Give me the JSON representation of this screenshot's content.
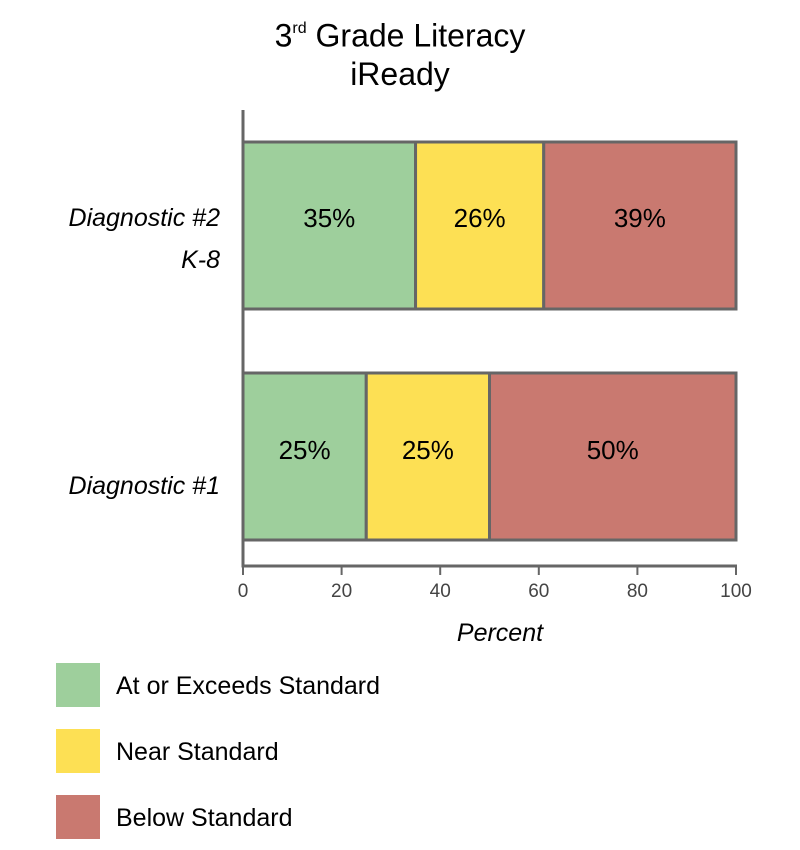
{
  "chart_data": {
    "type": "bar",
    "orientation": "horizontal",
    "stacked": true,
    "title": {
      "pre": "3",
      "sup": "rd",
      "post": " Grade Literacy",
      "line2": "iReady"
    },
    "categories": [
      [
        "Diagnostic #2",
        "K-8"
      ],
      [
        "Diagnostic #1"
      ]
    ],
    "series": [
      {
        "name": "At or Exceeds Standard",
        "color": "#9ecf9c",
        "values": [
          35,
          25
        ],
        "labels": [
          "35%",
          "25%"
        ]
      },
      {
        "name": "Near Standard",
        "color": "#fde054",
        "values": [
          26,
          25
        ],
        "labels": [
          "26%",
          "25%"
        ]
      },
      {
        "name": "Below Standard",
        "color": "#c97970",
        "values": [
          39,
          50
        ],
        "labels": [
          "39%",
          "50%"
        ]
      }
    ],
    "xlabel": "Percent",
    "xlim": [
      0,
      100
    ],
    "xticks": [
      0,
      20,
      40,
      60,
      80,
      100
    ],
    "grid": false,
    "legend_position": "bottom-left"
  }
}
